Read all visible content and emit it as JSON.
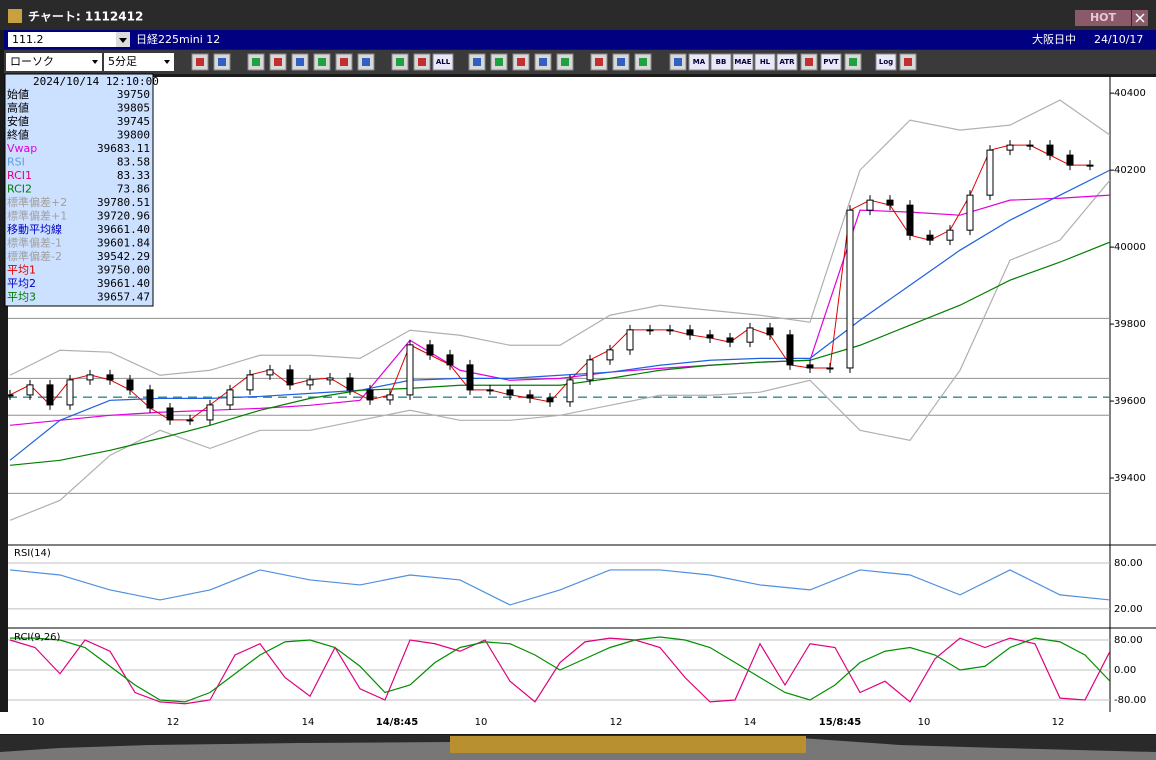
{
  "window": {
    "title": "チャート: 1112412",
    "hot": "HOT"
  },
  "symbol_bar": {
    "code": "111.2",
    "name": "日経225mini 12",
    "market": "大阪日中",
    "date": "24/10/17"
  },
  "toolbar": {
    "chart_type": "ローソク",
    "interval": "5分足",
    "buttons": [
      "ALL",
      "MA",
      "BB",
      "MAE",
      "HL",
      "ATR",
      "PVT",
      "Log"
    ]
  },
  "info": {
    "datetime": "2024/10/14 12:10:00",
    "rows": [
      {
        "label": "始値",
        "value": "39750",
        "color": "#000000"
      },
      {
        "label": "高値",
        "value": "39805",
        "color": "#000000"
      },
      {
        "label": "安値",
        "value": "39745",
        "color": "#000000"
      },
      {
        "label": "終値",
        "value": "39800",
        "color": "#000000"
      },
      {
        "label": "Vwap",
        "value": "39683.11",
        "color": "#e000e0"
      },
      {
        "label": "RSI",
        "value": "83.58",
        "color": "#5f9fdf"
      },
      {
        "label": "RCI1",
        "value": "83.33",
        "color": "#e0007f"
      },
      {
        "label": "RCI2",
        "value": "73.86",
        "color": "#007f00"
      },
      {
        "label": "標準偏差+2",
        "value": "39780.51",
        "color": "#a0a0a0"
      },
      {
        "label": "標準偏差+1",
        "value": "39720.96",
        "color": "#a0a0a0"
      },
      {
        "label": "移動平均線",
        "value": "39661.40",
        "color": "#0000c0"
      },
      {
        "label": "標準偏差-1",
        "value": "39601.84",
        "color": "#a0a0a0"
      },
      {
        "label": "標準偏差-2",
        "value": "39542.29",
        "color": "#a0a0a0"
      },
      {
        "label": "平均1",
        "value": "39750.00",
        "color": "#e00000"
      },
      {
        "label": "平均2",
        "value": "39661.40",
        "color": "#0000c0"
      },
      {
        "label": "平均3",
        "value": "39657.47",
        "color": "#007f00"
      }
    ]
  },
  "price_chart": {
    "type": "candlestick",
    "ylim": [
      39226,
      40442
    ],
    "yticks": [
      39400,
      39600,
      39800,
      40000,
      40200,
      40400
    ],
    "x_labels": [
      "10",
      "12",
      "14",
      "14/8:45",
      "10",
      "12",
      "14",
      "15/8:45",
      "10",
      "12"
    ],
    "levels": [
      39815,
      39659,
      39563,
      39360
    ],
    "dashed_level": 39610,
    "close": [
      39616,
      39642,
      39590,
      39655,
      39668,
      39655,
      39629,
      39582,
      39551,
      39551,
      39590,
      39629,
      39668,
      39681,
      39642,
      39655,
      39660,
      39629,
      39603,
      39616,
      39746,
      39720,
      39694,
      39629,
      39629,
      39616,
      39608,
      39598,
      39655,
      39707,
      39733,
      39785,
      39785,
      39785,
      39772,
      39764,
      39753,
      39790,
      39772,
      39694,
      39686,
      39686,
      40096,
      40122,
      40109,
      40031,
      40018,
      40044,
      40135,
      40252,
      40265,
      40265,
      40239,
      40213,
      40213
    ],
    "lines": [
      {
        "color": "#b0b0b0",
        "values": [
          39667,
          39732,
          39727,
          39667,
          39680,
          39719,
          39719,
          39711,
          39784,
          39771,
          39745,
          39745,
          39823,
          39849,
          39836,
          39823,
          39805,
          40200,
          40330,
          40304,
          40317,
          40382,
          40291
        ]
      },
      {
        "color": "#b0b0b0",
        "values": [
          39290,
          39342,
          39459,
          39524,
          39477,
          39524,
          39524,
          39550,
          39576,
          39550,
          39550,
          39563,
          39589,
          39615,
          39615,
          39623,
          39654,
          39524,
          39498,
          39680,
          39966,
          40018,
          40174
        ]
      },
      {
        "color": "#e000e0",
        "values": [
          39537,
          39550,
          39563,
          39571,
          39576,
          39581,
          39589,
          39602,
          39758,
          39680,
          39654,
          39659,
          39675,
          39685,
          39693,
          39701,
          39706,
          40096,
          40091,
          40083,
          40122,
          40127,
          40135
        ]
      },
      {
        "color": "#2060e0",
        "values": [
          39446,
          39550,
          39602,
          39607,
          39607,
          39612,
          39620,
          39628,
          39654,
          39659,
          39659,
          39667,
          39675,
          39693,
          39706,
          39711,
          39711,
          39810,
          39901,
          39992,
          40070,
          40135,
          40200
        ]
      },
      {
        "color": "#007f00",
        "values": [
          39433,
          39446,
          39472,
          39503,
          39537,
          39576,
          39607,
          39628,
          39633,
          39641,
          39641,
          39641,
          39659,
          39680,
          39693,
          39701,
          39706,
          39745,
          39797,
          39849,
          39914,
          39961,
          40013
        ]
      }
    ]
  },
  "rsi_chart": {
    "type": "line",
    "title": "RSI(14)",
    "ylim": [
      -5,
      103.5
    ],
    "yticks": [
      {
        "value": 80,
        "label": "80.00"
      },
      {
        "value": 20,
        "label": "20.00"
      }
    ],
    "color": "#4f8fdf",
    "values": [
      70.9,
      64.3,
      44.8,
      31.7,
      44.8,
      70.9,
      57.8,
      51.3,
      64.3,
      57.8,
      25.2,
      44.8,
      70.9,
      70.9,
      64.3,
      51.3,
      44.8,
      70.9,
      64.3,
      38.3,
      70.9,
      38.3,
      31.7
    ]
  },
  "rci_chart": {
    "type": "line",
    "title": "RCI(9,26)",
    "ylim": [
      -112,
      112
    ],
    "yticks": [
      {
        "value": 80,
        "label": "80.00"
      },
      {
        "value": 0,
        "label": "0.00"
      },
      {
        "value": -80,
        "label": "-80.00"
      }
    ],
    "series": [
      {
        "color": "#e0007f",
        "values": [
          80,
          60,
          -10,
          80,
          50,
          -60,
          -85,
          -90,
          -80,
          40,
          70,
          -20,
          -70,
          60,
          -50,
          -80,
          80,
          70,
          50,
          80,
          -30,
          -85,
          20,
          75,
          85,
          80,
          60,
          -20,
          -85,
          -80,
          70,
          -40,
          70,
          60,
          -60,
          -30,
          -85,
          30,
          85,
          60,
          85,
          70,
          -75,
          -80,
          50
        ]
      },
      {
        "color": "#008f00",
        "values": [
          85,
          85,
          80,
          60,
          10,
          -40,
          -80,
          -85,
          -60,
          -10,
          40,
          75,
          80,
          60,
          10,
          -60,
          -40,
          20,
          60,
          75,
          70,
          40,
          0,
          30,
          60,
          80,
          88,
          80,
          60,
          20,
          -20,
          -60,
          -80,
          -40,
          20,
          50,
          60,
          40,
          0,
          10,
          60,
          85,
          75,
          40,
          -30
        ]
      }
    ]
  }
}
